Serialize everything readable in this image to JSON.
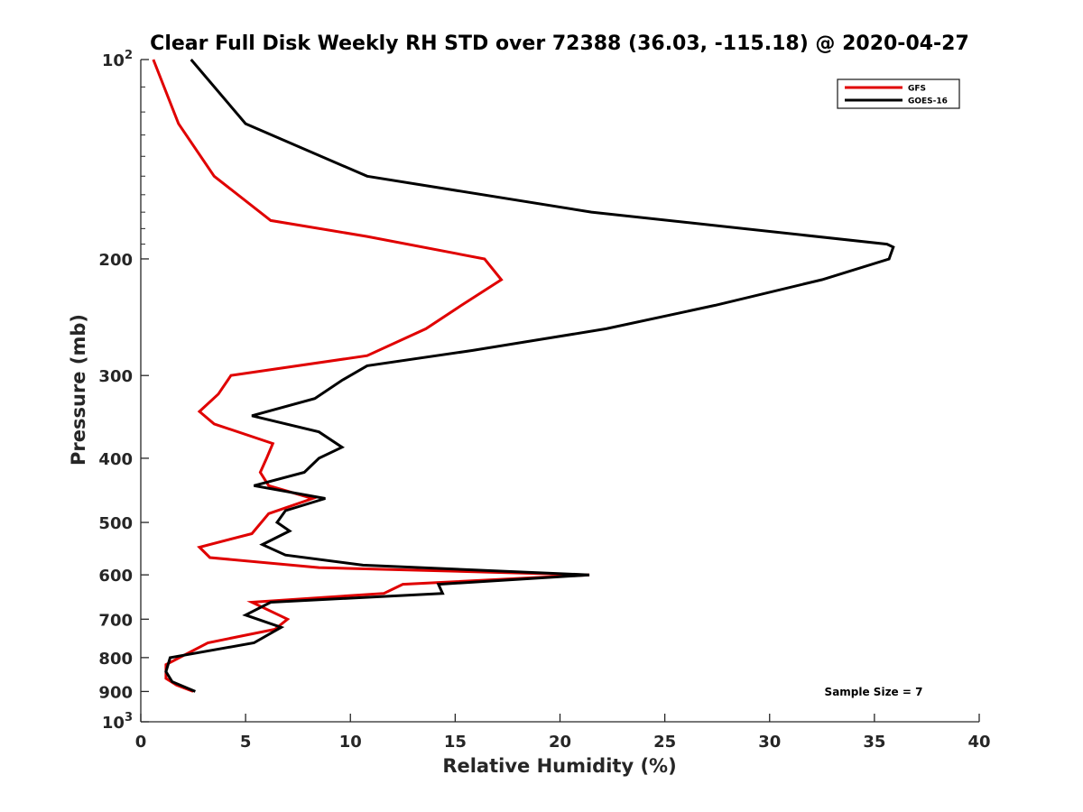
{
  "chart_data": {
    "type": "line",
    "title": "Clear Full Disk Weekly RH STD over 72388 (36.03, -115.18) @ 2020-04-27",
    "xlabel": "Relative Humidity (%)",
    "ylabel": "Pressure (mb)",
    "xlim": [
      0,
      40
    ],
    "ylim": [
      100,
      1000
    ],
    "y_scale": "log",
    "y_reversed": true,
    "x_ticks": [
      "0",
      "5",
      "10",
      "15",
      "20",
      "25",
      "30",
      "35",
      "40"
    ],
    "y_ticks": [
      {
        "value": 100,
        "base": "10",
        "exp": "2"
      },
      {
        "value": 200,
        "label": "200"
      },
      {
        "value": 300,
        "label": "300"
      },
      {
        "value": 400,
        "label": "400"
      },
      {
        "value": 500,
        "label": "500"
      },
      {
        "value": 600,
        "label": "600"
      },
      {
        "value": 700,
        "label": "700"
      },
      {
        "value": 800,
        "label": "800"
      },
      {
        "value": 900,
        "label": "900"
      },
      {
        "value": 1000,
        "base": "10",
        "exp": "3"
      }
    ],
    "legend_position": "top-right",
    "annotation": "Sample Size = 7",
    "series": [
      {
        "name": "GFS",
        "color": "#e00000",
        "points": [
          [
            0.6,
            100
          ],
          [
            1.8,
            125
          ],
          [
            3.5,
            150
          ],
          [
            6.2,
            175
          ],
          [
            10.8,
            185
          ],
          [
            16.4,
            200
          ],
          [
            17.2,
            215
          ],
          [
            15.3,
            235
          ],
          [
            13.6,
            255
          ],
          [
            10.8,
            280
          ],
          [
            4.3,
            300
          ],
          [
            3.7,
            320
          ],
          [
            2.8,
            340
          ],
          [
            3.5,
            355
          ],
          [
            6.3,
            380
          ],
          [
            6.0,
            400
          ],
          [
            5.7,
            420
          ],
          [
            6.1,
            440
          ],
          [
            8.2,
            460
          ],
          [
            6.1,
            485
          ],
          [
            5.3,
            520
          ],
          [
            2.8,
            545
          ],
          [
            3.3,
            565
          ],
          [
            8.5,
            585
          ],
          [
            21.4,
            600
          ],
          [
            12.5,
            620
          ],
          [
            11.6,
            640
          ],
          [
            5.3,
            660
          ],
          [
            7.0,
            700
          ],
          [
            6.4,
            725
          ],
          [
            3.2,
            760
          ],
          [
            1.2,
            820
          ],
          [
            1.2,
            860
          ],
          [
            1.7,
            880
          ],
          [
            2.5,
            900
          ]
        ]
      },
      {
        "name": "GOES-16",
        "color": "#000000",
        "points": [
          [
            2.4,
            100
          ],
          [
            5.0,
            125
          ],
          [
            10.8,
            150
          ],
          [
            21.5,
            170
          ],
          [
            35.6,
            190
          ],
          [
            35.9,
            192
          ],
          [
            35.7,
            200
          ],
          [
            32.5,
            215
          ],
          [
            27.4,
            235
          ],
          [
            22.2,
            255
          ],
          [
            15.8,
            275
          ],
          [
            10.8,
            290
          ],
          [
            9.6,
            305
          ],
          [
            8.3,
            325
          ],
          [
            5.3,
            345
          ],
          [
            8.5,
            365
          ],
          [
            9.6,
            385
          ],
          [
            8.5,
            400
          ],
          [
            7.8,
            420
          ],
          [
            5.4,
            440
          ],
          [
            8.8,
            460
          ],
          [
            6.9,
            480
          ],
          [
            6.5,
            500
          ],
          [
            7.1,
            515
          ],
          [
            5.8,
            540
          ],
          [
            6.9,
            560
          ],
          [
            10.6,
            580
          ],
          [
            21.4,
            600
          ],
          [
            14.2,
            620
          ],
          [
            14.4,
            640
          ],
          [
            6.2,
            660
          ],
          [
            5.0,
            690
          ],
          [
            6.7,
            720
          ],
          [
            5.4,
            760
          ],
          [
            1.4,
            800
          ],
          [
            1.2,
            840
          ],
          [
            1.5,
            870
          ],
          [
            2.6,
            900
          ]
        ]
      }
    ]
  }
}
